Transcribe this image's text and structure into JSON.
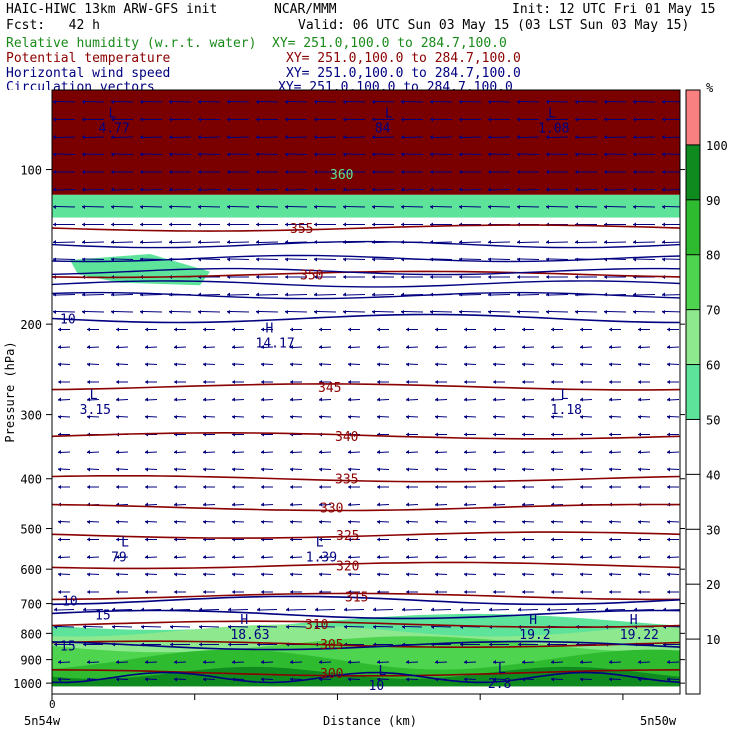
{
  "header": {
    "model": "HAIC-HIWC 13km ARW-GFS init",
    "org": "NCAR/MMM",
    "init": "Init: 12 UTC Fri 01 May 15",
    "fcst": "Fcst:   42 h",
    "valid": "Valid: 06 UTC Sun 03 May 15 (03 LST Sun 03 May 15)"
  },
  "legend": [
    {
      "label": "Relative humidity (w.r.t. water)",
      "xy": "XY= 251.0,100.0 to 284.7,100.0",
      "color": "#1a8a1a"
    },
    {
      "label": "Potential temperature",
      "xy": "XY= 251.0,100.0 to 284.7,100.0",
      "color": "#8b0000"
    },
    {
      "label": "Horizontal wind speed",
      "xy": "XY= 251.0,100.0 to 284.7,100.0",
      "color": "#000080"
    },
    {
      "label": "Circulation vectors",
      "xy": "XY= 251.0,100.0 to 284.7,100.0",
      "color": "#000080"
    }
  ],
  "chart_data": {
    "type": "heatmap",
    "ylabel": "Pressure (hPa)",
    "xlabel": "Distance (km)",
    "x_start_label": "5n54w",
    "x_end_label": "5n50w",
    "x_zero_label": "0",
    "y_scale": "log",
    "ylim": [
      1050,
      70
    ],
    "y_ticks": [
      100,
      200,
      300,
      400,
      500,
      600,
      700,
      800,
      900,
      1000
    ],
    "colorbar": {
      "unit": "%",
      "ticks": [
        10,
        20,
        30,
        40,
        50,
        60,
        70,
        80,
        90,
        100
      ],
      "bands": [
        {
          "from": 50,
          "to": 60,
          "color": "#5de39a"
        },
        {
          "from": 60,
          "to": 70,
          "color": "#8ee88e"
        },
        {
          "from": 70,
          "to": 80,
          "color": "#4fd44f"
        },
        {
          "from": 80,
          "to": 90,
          "color": "#2fbb2f"
        },
        {
          "from": 90,
          "to": 100,
          "color": "#0f8a1f"
        },
        {
          "from": 100,
          "to": 110,
          "color": "#f98080"
        }
      ]
    },
    "theta_contours": [
      {
        "label": "355",
        "p": 130
      },
      {
        "label": "350",
        "p": 160
      },
      {
        "label": "345",
        "p": 265
      },
      {
        "label": "340",
        "p": 330
      },
      {
        "label": "335",
        "p": 400
      },
      {
        "label": "330",
        "p": 455
      },
      {
        "label": "325",
        "p": 515
      },
      {
        "label": "320",
        "p": 590
      },
      {
        "label": "315",
        "p": 678
      },
      {
        "label": "310",
        "p": 768
      },
      {
        "label": "305",
        "p": 840
      },
      {
        "label": "300",
        "p": 955
      }
    ],
    "theta_top_label": "360",
    "wind_contours": [
      {
        "label": "10",
        "p": 195
      },
      {
        "label": "10",
        "p": 690
      },
      {
        "label": "15",
        "p": 735
      },
      {
        "label": "15",
        "p": 845
      }
    ],
    "extrema": [
      {
        "type": "L",
        "value": "4.77",
        "x_frac": 0.09,
        "p": 82
      },
      {
        "type": "L",
        "value": "84",
        "x_frac": 0.53,
        "p": 82
      },
      {
        "type": "L",
        "value": "1.08",
        "x_frac": 0.79,
        "p": 82
      },
      {
        "type": "H",
        "value": "14.17",
        "x_frac": 0.34,
        "p": 215
      },
      {
        "type": "L",
        "value": "3.15",
        "x_frac": 0.06,
        "p": 290
      },
      {
        "type": "L",
        "value": "1.18",
        "x_frac": 0.81,
        "p": 290
      },
      {
        "type": "L",
        "value": "79",
        "x_frac": 0.11,
        "p": 562
      },
      {
        "type": "L",
        "value": "1.39",
        "x_frac": 0.42,
        "p": 562
      },
      {
        "type": "H",
        "value": "18.63",
        "x_frac": 0.3,
        "p": 795
      },
      {
        "type": "H",
        "value": "19.2",
        "x_frac": 0.76,
        "p": 795
      },
      {
        "type": "H",
        "value": "19.22",
        "x_frac": 0.92,
        "p": 795
      },
      {
        "type": "L",
        "value": "2.8",
        "x_frac": 0.71,
        "p": 990
      },
      {
        "type": "L",
        "value": "10",
        "x_frac": 0.52,
        "p": 1000
      }
    ]
  }
}
